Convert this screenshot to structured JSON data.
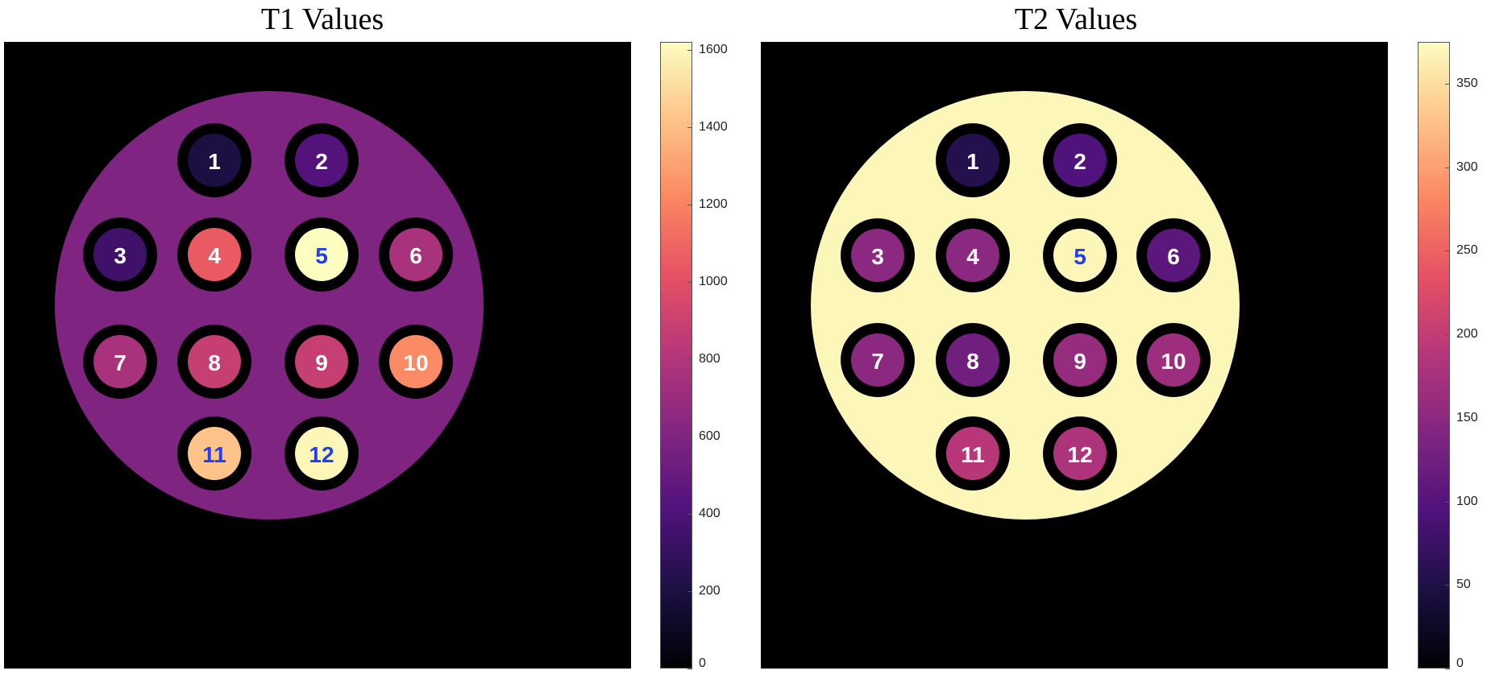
{
  "colors": {
    "background": "#000000",
    "label_white": "#ffffff",
    "label_blue": "#1f3ff0",
    "colormap": [
      "#000004",
      "#1c1044",
      "#4f127b",
      "#812581",
      "#b5367a",
      "#e55064",
      "#fb8761",
      "#fec287",
      "#fcfdbf"
    ]
  },
  "colormap_name": "magma",
  "panels": [
    {
      "title": "T1 Values",
      "phantom_value": 600,
      "colorbar": {
        "min": 0,
        "max": 1620,
        "ticks": [
          "0",
          "200",
          "400",
          "600",
          "800",
          "1000",
          "1200",
          "1400",
          "1600"
        ]
      },
      "spheres": [
        {
          "label": "1",
          "value": 200,
          "label_color": "white"
        },
        {
          "label": "2",
          "value": 420,
          "label_color": "white"
        },
        {
          "label": "3",
          "value": 340,
          "label_color": "white"
        },
        {
          "label": "4",
          "value": 1050,
          "label_color": "white"
        },
        {
          "label": "5",
          "value": 1620,
          "label_color": "blue"
        },
        {
          "label": "6",
          "value": 760,
          "label_color": "white"
        },
        {
          "label": "7",
          "value": 760,
          "label_color": "white"
        },
        {
          "label": "8",
          "value": 880,
          "label_color": "white"
        },
        {
          "label": "9",
          "value": 880,
          "label_color": "white"
        },
        {
          "label": "10",
          "value": 1230,
          "label_color": "white"
        },
        {
          "label": "11",
          "value": 1420,
          "label_color": "blue"
        },
        {
          "label": "12",
          "value": 1600,
          "label_color": "blue"
        }
      ]
    },
    {
      "title": "T2 Values",
      "phantom_value": 370,
      "colorbar": {
        "min": 0,
        "max": 375,
        "ticks": [
          "0",
          "50",
          "100",
          "150",
          "200",
          "250",
          "300",
          "350"
        ]
      },
      "spheres": [
        {
          "label": "1",
          "value": 55,
          "label_color": "white"
        },
        {
          "label": "2",
          "value": 95,
          "label_color": "white"
        },
        {
          "label": "3",
          "value": 150,
          "label_color": "white"
        },
        {
          "label": "4",
          "value": 150,
          "label_color": "white"
        },
        {
          "label": "5",
          "value": 370,
          "label_color": "blue"
        },
        {
          "label": "6",
          "value": 105,
          "label_color": "white"
        },
        {
          "label": "7",
          "value": 150,
          "label_color": "white"
        },
        {
          "label": "8",
          "value": 125,
          "label_color": "white"
        },
        {
          "label": "9",
          "value": 160,
          "label_color": "white"
        },
        {
          "label": "10",
          "value": 165,
          "label_color": "white"
        },
        {
          "label": "11",
          "value": 190,
          "label_color": "white"
        },
        {
          "label": "12",
          "value": 180,
          "label_color": "white"
        }
      ]
    }
  ],
  "chart_data": [
    {
      "type": "heatmap",
      "title": "T1 Values",
      "colorbar_range": [
        0,
        1620
      ],
      "colorbar_ticks": [
        0,
        200,
        400,
        600,
        800,
        1000,
        1200,
        1400,
        1600
      ],
      "background_value": 600,
      "regions": [
        "1",
        "2",
        "3",
        "4",
        "5",
        "6",
        "7",
        "8",
        "9",
        "10",
        "11",
        "12"
      ],
      "values": [
        200,
        420,
        340,
        1050,
        1620,
        760,
        760,
        880,
        880,
        1230,
        1420,
        1600
      ]
    },
    {
      "type": "heatmap",
      "title": "T2 Values",
      "colorbar_range": [
        0,
        375
      ],
      "colorbar_ticks": [
        0,
        50,
        100,
        150,
        200,
        250,
        300,
        350
      ],
      "background_value": 370,
      "regions": [
        "1",
        "2",
        "3",
        "4",
        "5",
        "6",
        "7",
        "8",
        "9",
        "10",
        "11",
        "12"
      ],
      "values": [
        55,
        95,
        150,
        150,
        370,
        105,
        150,
        125,
        160,
        165,
        190,
        180
      ]
    }
  ]
}
